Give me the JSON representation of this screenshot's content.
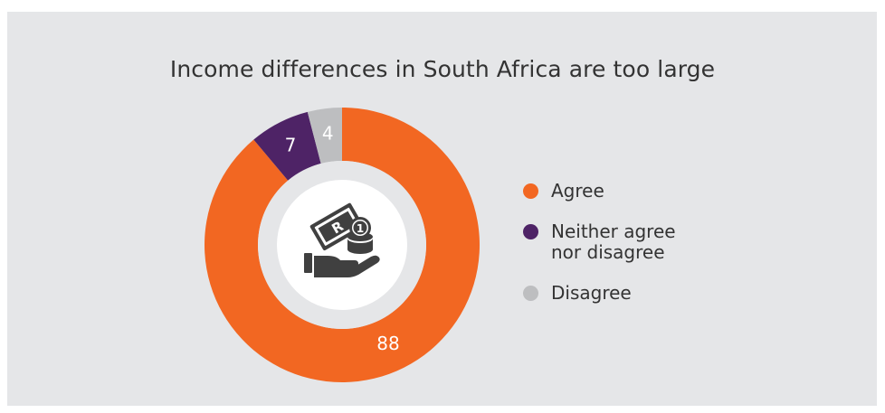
{
  "chart_data": {
    "type": "pie",
    "donut": true,
    "title": "Income differences in South Africa are too large",
    "slices": [
      {
        "label": "Agree",
        "value": 88,
        "display": "88",
        "color": "#f26722"
      },
      {
        "label": "Neither agree\nnor disagree",
        "value": 7,
        "display": "7",
        "color": "#4e2366"
      },
      {
        "label": "Disagree",
        "value": 4,
        "display": "4",
        "color": "#bdbec0"
      }
    ],
    "legend_position": "right",
    "center_icon": "hand-with-money-icon"
  },
  "colors": {
    "background": "#e5e6e8",
    "inner_circle": "#ffffff",
    "icon": "#404040",
    "title_text": "#333333",
    "label_text": "#ffffff"
  }
}
